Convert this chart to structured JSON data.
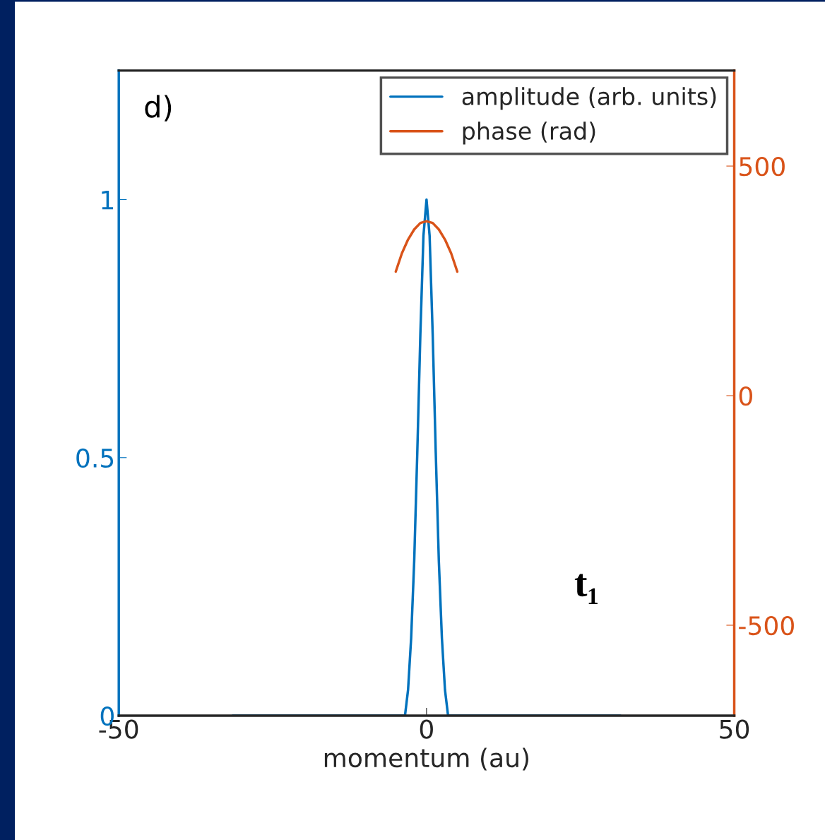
{
  "chart_data": {
    "type": "line",
    "xlabel": "momentum (au)",
    "xlim": [
      -50,
      50
    ],
    "xticks": [
      -50,
      0,
      50
    ],
    "ylim": [
      0,
      1.25
    ],
    "yticks": [
      0,
      0.5,
      1
    ],
    "y2lim": [
      -697,
      708
    ],
    "y2ticks": [
      -500,
      0,
      500
    ],
    "legend": "top right",
    "line_style": "solid",
    "annotations": [
      "d)",
      "t₁"
    ],
    "series": [
      {
        "name": "amplitude (arb. units)",
        "color": "#0072bd",
        "x": [
          -31.5,
          -3.5,
          -3,
          -2.5,
          -2,
          -1.5,
          -1,
          -0.5,
          0,
          0.5,
          1,
          1.5,
          2,
          2.5,
          3,
          3.5,
          31.5
        ],
        "values": [
          0,
          0,
          0.05,
          0.15,
          0.3,
          0.51,
          0.74,
          0.93,
          1,
          0.93,
          0.74,
          0.51,
          0.3,
          0.15,
          0.05,
          0,
          0
        ]
      },
      {
        "name": "phase (rad)",
        "color": "#d95319",
        "axis": "y2",
        "x": [
          -5,
          -4,
          -3,
          -2,
          -1,
          0,
          1,
          2,
          3,
          4,
          5
        ],
        "values": [
          270,
          310,
          340,
          362,
          376,
          380,
          376,
          362,
          340,
          310,
          270
        ]
      }
    ]
  }
}
